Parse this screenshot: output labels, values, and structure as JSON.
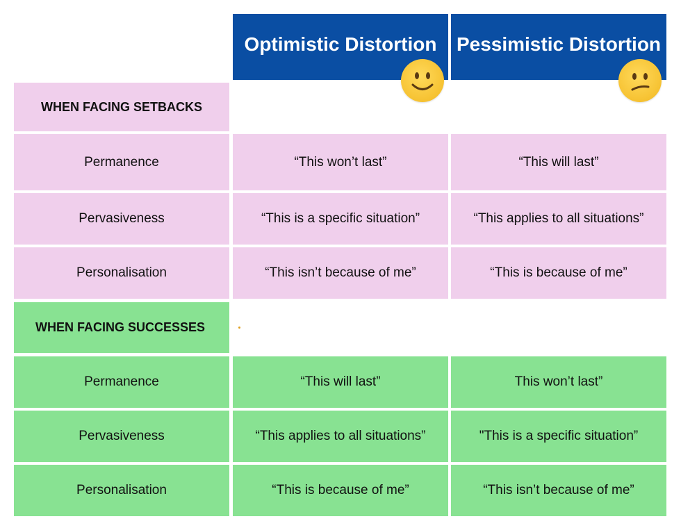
{
  "colors": {
    "header_bg": "#0a4ea3",
    "setbacks_bg": "#f0cfec",
    "successes_bg": "#88e292",
    "emoji": "#f6c232"
  },
  "columns": {
    "optimistic": {
      "label": "Optimistic Distortion",
      "icon": "smiling-face-icon"
    },
    "pessimistic": {
      "label": "Pessimistic Distortion",
      "icon": "confused-face-icon"
    }
  },
  "setbacks": {
    "heading": "WHEN FACING SETBACKS",
    "rows": [
      {
        "label": "Permanence",
        "optimistic": "“This won’t last”",
        "pessimistic": "“This will last”"
      },
      {
        "label": "Pervasiveness",
        "optimistic": "“This is a specific situation”",
        "pessimistic": "“This applies to all situations”"
      },
      {
        "label": "Personalisation",
        "optimistic": "“This isn’t because of me”",
        "pessimistic": "“This is because of me”"
      }
    ]
  },
  "successes": {
    "heading": "WHEN FACING SUCCESSES",
    "rows": [
      {
        "label": "Permanence",
        "optimistic": "“This will last”",
        "pessimistic": "This won’t last”"
      },
      {
        "label": "Pervasiveness",
        "optimistic": "“This applies to all situations”",
        "pessimistic": "\"This is a specific situation”"
      },
      {
        "label": "Personalisation",
        "optimistic": "“This is because of me”",
        "pessimistic": "“This isn’t because of me”"
      }
    ]
  }
}
